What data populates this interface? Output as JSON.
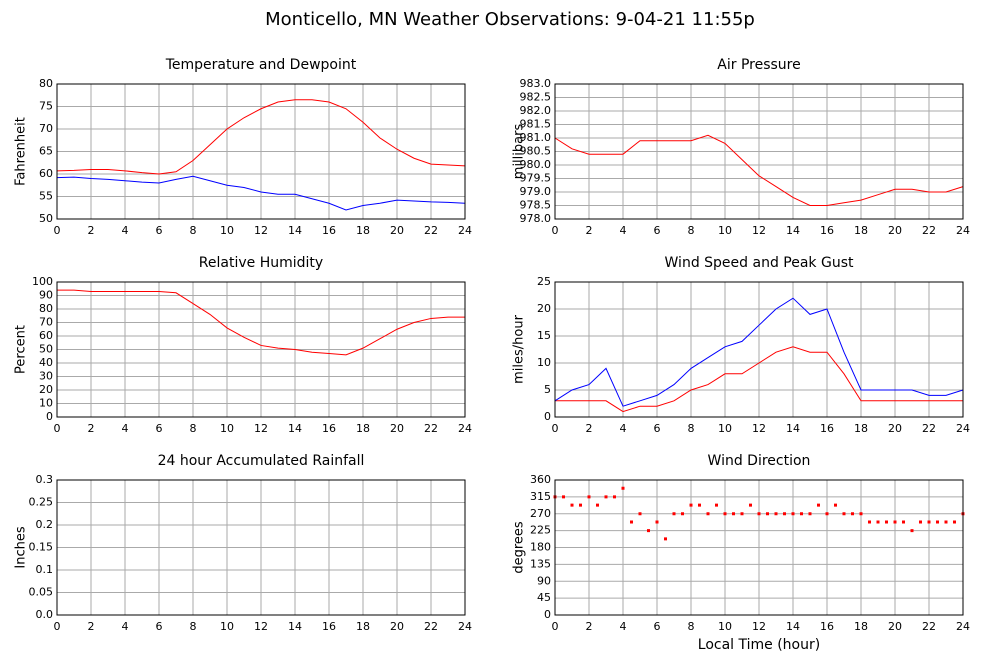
{
  "title": "Monticello, MN Weather Observations: 9-04-21 11:55p",
  "chart_data": [
    {
      "type": "line",
      "title": "Temperature and Dewpoint",
      "ylabel": "Fahrenheit",
      "x": [
        0,
        1,
        2,
        3,
        4,
        5,
        6,
        7,
        8,
        9,
        10,
        11,
        12,
        13,
        14,
        15,
        16,
        17,
        18,
        19,
        20,
        21,
        22,
        23,
        24
      ],
      "series": [
        {
          "name": "Temperature",
          "color": "#ff0000",
          "values": [
            60.7,
            60.8,
            61,
            61,
            60.7,
            60.3,
            60,
            60.5,
            63,
            66.5,
            70,
            72.5,
            74.5,
            76,
            76.5,
            76.5,
            76,
            74.5,
            71.5,
            68,
            65.5,
            63.5,
            62.2,
            62,
            61.8
          ]
        },
        {
          "name": "Dewpoint",
          "color": "#0000ff",
          "values": [
            59.2,
            59.3,
            59,
            58.8,
            58.5,
            58.2,
            58,
            58.8,
            59.5,
            58.5,
            57.5,
            57,
            56,
            55.5,
            55.5,
            54.5,
            53.5,
            52,
            53,
            53.5,
            54.2,
            54,
            53.8,
            53.7,
            53.5
          ]
        }
      ],
      "xlim": [
        0,
        24
      ],
      "xticks": [
        0,
        2,
        4,
        6,
        8,
        10,
        12,
        14,
        16,
        18,
        20,
        22,
        24
      ],
      "ylim": [
        50,
        80
      ],
      "yticks": [
        50,
        55,
        60,
        65,
        70,
        75,
        80
      ],
      "grid": true
    },
    {
      "type": "line",
      "title": "Air Pressure",
      "ylabel": "millibars",
      "x": [
        0,
        1,
        2,
        3,
        4,
        5,
        6,
        7,
        8,
        9,
        10,
        11,
        12,
        13,
        14,
        15,
        16,
        17,
        18,
        19,
        20,
        21,
        22,
        23,
        24
      ],
      "series": [
        {
          "name": "Pressure",
          "color": "#ff0000",
          "values": [
            981.0,
            980.6,
            980.4,
            980.4,
            980.4,
            980.9,
            980.9,
            980.9,
            980.9,
            981.1,
            980.8,
            980.2,
            979.6,
            979.2,
            978.8,
            978.5,
            978.5,
            978.6,
            978.7,
            978.9,
            979.1,
            979.1,
            979.0,
            979.0,
            979.2
          ]
        }
      ],
      "xlim": [
        0,
        24
      ],
      "xticks": [
        0,
        2,
        4,
        6,
        8,
        10,
        12,
        14,
        16,
        18,
        20,
        22,
        24
      ],
      "ylim": [
        978,
        983
      ],
      "yticks": [
        {
          "value": 978,
          "label": "978.0"
        },
        978.5,
        {
          "value": 979,
          "label": "979.0"
        },
        979.5,
        {
          "value": 980,
          "label": "980.0"
        },
        980.5,
        {
          "value": 981,
          "label": "981.0"
        },
        981.5,
        {
          "value": 982,
          "label": "982.0"
        },
        982.5,
        {
          "value": 983,
          "label": "983.0"
        }
      ],
      "grid": true
    },
    {
      "type": "line",
      "title": "Relative Humidity",
      "ylabel": "Percent",
      "x": [
        0,
        1,
        2,
        3,
        4,
        5,
        6,
        7,
        8,
        9,
        10,
        11,
        12,
        13,
        14,
        15,
        16,
        17,
        18,
        19,
        20,
        21,
        22,
        23,
        24
      ],
      "series": [
        {
          "name": "Humidity",
          "color": "#ff0000",
          "values": [
            94,
            94,
            93,
            93,
            93,
            93,
            93,
            92,
            84,
            76,
            66,
            59,
            53,
            51,
            50,
            48,
            47,
            46,
            51,
            58,
            65,
            70,
            73,
            74,
            74
          ]
        }
      ],
      "xlim": [
        0,
        24
      ],
      "xticks": [
        0,
        2,
        4,
        6,
        8,
        10,
        12,
        14,
        16,
        18,
        20,
        22,
        24
      ],
      "ylim": [
        0,
        100
      ],
      "yticks": [
        0,
        10,
        20,
        30,
        40,
        50,
        60,
        70,
        80,
        90,
        100
      ],
      "grid": true
    },
    {
      "type": "line",
      "title": "Wind Speed and Peak Gust",
      "ylabel": "miles/hour",
      "x": [
        0,
        1,
        2,
        3,
        4,
        5,
        6,
        7,
        8,
        9,
        10,
        11,
        12,
        13,
        14,
        15,
        16,
        17,
        18,
        19,
        20,
        21,
        22,
        23,
        24
      ],
      "series": [
        {
          "name": "Wind Speed",
          "color": "#ff0000",
          "values": [
            3,
            3,
            3,
            3,
            1,
            2,
            2,
            3,
            5,
            6,
            8,
            8,
            10,
            12,
            13,
            12,
            12,
            8,
            3,
            3,
            3,
            3,
            3,
            3,
            3
          ]
        },
        {
          "name": "Peak Gust",
          "color": "#0000ff",
          "values": [
            3,
            5,
            6,
            9,
            2,
            3,
            4,
            6,
            9,
            11,
            13,
            14,
            17,
            20,
            22,
            19,
            20,
            12,
            5,
            5,
            5,
            5,
            4,
            4,
            5
          ]
        }
      ],
      "xlim": [
        0,
        24
      ],
      "xticks": [
        0,
        2,
        4,
        6,
        8,
        10,
        12,
        14,
        16,
        18,
        20,
        22,
        24
      ],
      "ylim": [
        0,
        25
      ],
      "yticks": [
        0,
        5,
        10,
        15,
        20,
        25
      ],
      "grid": true
    },
    {
      "type": "line",
      "title": "24 hour Accumulated Rainfall",
      "ylabel": "Inches",
      "x": [
        0,
        24
      ],
      "series": [
        {
          "name": "Rainfall",
          "color": "#ff0000",
          "values": [
            0,
            0
          ]
        }
      ],
      "xlim": [
        0,
        24
      ],
      "xticks": [
        0,
        2,
        4,
        6,
        8,
        10,
        12,
        14,
        16,
        18,
        20,
        22,
        24
      ],
      "ylim": [
        0,
        0.3
      ],
      "yticks": [
        {
          "value": 0,
          "label": "0.0"
        },
        0.05,
        0.1,
        0.15,
        0.2,
        0.25,
        0.3
      ],
      "grid": true
    },
    {
      "type": "scatter",
      "title": "Wind Direction",
      "ylabel": "degrees",
      "xlabel": "Local Time (hour)",
      "x": [
        0,
        0.5,
        1,
        1.5,
        2,
        2.5,
        3,
        3.5,
        4,
        4.5,
        5,
        5.5,
        6,
        6.5,
        7,
        7.5,
        8,
        8.5,
        9,
        9.5,
        10,
        10.5,
        11,
        11.5,
        12,
        12.5,
        13,
        13.5,
        14,
        14.5,
        15,
        15.5,
        16,
        16.5,
        17,
        17.5,
        18,
        18.5,
        19,
        19.5,
        20,
        20.5,
        21,
        21.5,
        22,
        22.5,
        23,
        23.5,
        24
      ],
      "series": [
        {
          "name": "Direction",
          "color": "#ff0000",
          "values": [
            315,
            315,
            293,
            293,
            315,
            293,
            315,
            315,
            338,
            248,
            270,
            225,
            248,
            203,
            270,
            270,
            293,
            293,
            270,
            293,
            270,
            270,
            270,
            293,
            270,
            270,
            270,
            270,
            270,
            270,
            270,
            293,
            270,
            293,
            270,
            270,
            270,
            248,
            248,
            248,
            248,
            248,
            225,
            248,
            248,
            248,
            248,
            248,
            270
          ]
        }
      ],
      "xlim": [
        0,
        24
      ],
      "xticks": [
        0,
        2,
        4,
        6,
        8,
        10,
        12,
        14,
        16,
        18,
        20,
        22,
        24
      ],
      "ylim": [
        0,
        360
      ],
      "yticks": [
        0,
        45,
        90,
        135,
        180,
        225,
        270,
        315,
        360
      ],
      "grid": true
    }
  ]
}
